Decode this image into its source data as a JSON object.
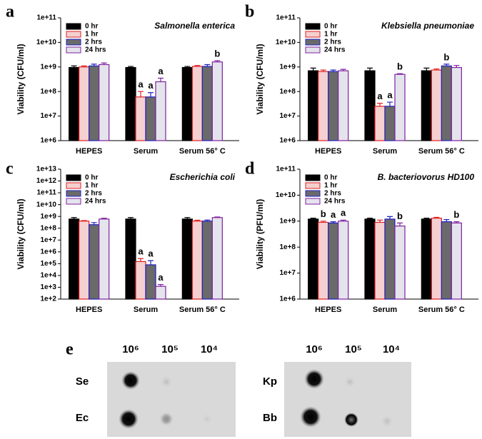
{
  "chart_data": [
    {
      "type": "bar",
      "panel_label": "a",
      "title": "Salmonella enterica",
      "ylabel": "Viability (CFU/ml)",
      "categories": [
        "HEPES",
        "Serum",
        "Serum 56° C"
      ],
      "log_scale": true,
      "legend": "upper left",
      "ylim": [
        1000000.0,
        100000000000.0
      ],
      "yticks": [
        {
          "value": 1000000.0,
          "label": "1e+6"
        },
        {
          "value": 10000000.0,
          "label": "1e+7"
        },
        {
          "value": 100000000.0,
          "label": "1e+8"
        },
        {
          "value": 1000000000.0,
          "label": "1e+9"
        },
        {
          "value": 10000000000.0,
          "label": "1e+10"
        },
        {
          "value": 100000000000.0,
          "label": "1e+11"
        }
      ],
      "series": [
        {
          "name": "0 hr",
          "color": "#000000",
          "edgecolor": "#000000",
          "values": [
            950000000,
            950000000,
            950000000
          ],
          "errors": [
            150000000,
            100000000,
            100000000
          ],
          "annotations": [
            null,
            null,
            null
          ]
        },
        {
          "name": "1 hr",
          "color": "#f4d0d0",
          "edgecolor": "#e02020",
          "values": [
            1000000000,
            60000000,
            1050000000
          ],
          "errors": [
            100000000,
            40000000,
            100000000
          ],
          "annotations": [
            null,
            "a",
            null
          ]
        },
        {
          "name": "2 hrs",
          "color": "#6a6a6a",
          "edgecolor": "#2020c0",
          "values": [
            1100000000,
            60000000,
            1050000000
          ],
          "errors": [
            200000000,
            30000000,
            200000000
          ],
          "annotations": [
            null,
            "a",
            null
          ]
        },
        {
          "name": "24 hrs",
          "color": "#e4e4ec",
          "edgecolor": "#8020a0",
          "values": [
            1250000000,
            250000000,
            1600000000
          ],
          "errors": [
            200000000,
            100000000,
            200000000
          ],
          "annotations": [
            null,
            "a",
            "b"
          ]
        }
      ]
    },
    {
      "type": "bar",
      "panel_label": "b",
      "title": "Klebsiella pneumoniae",
      "ylabel": "Viability (CFU/ml)",
      "categories": [
        "HEPES",
        "Serum",
        "Serum 56° C"
      ],
      "log_scale": true,
      "legend": "upper left",
      "ylim": [
        1000000.0,
        100000000000.0
      ],
      "yticks": [
        {
          "value": 1000000.0,
          "label": "1e+6"
        },
        {
          "value": 10000000.0,
          "label": "1e+7"
        },
        {
          "value": 100000000.0,
          "label": "1e+8"
        },
        {
          "value": 1000000000.0,
          "label": "1e+9"
        },
        {
          "value": 10000000000.0,
          "label": "1e+10"
        },
        {
          "value": 100000000000.0,
          "label": "1e+11"
        }
      ],
      "series": [
        {
          "name": "0 hr",
          "color": "#000000",
          "edgecolor": "#000000",
          "values": [
            700000000,
            700000000,
            700000000
          ],
          "errors": [
            200000000,
            200000000,
            200000000
          ],
          "annotations": [
            null,
            null,
            null
          ]
        },
        {
          "name": "1 hr",
          "color": "#f4d0d0",
          "edgecolor": "#e02020",
          "values": [
            650000000,
            25000000,
            750000000
          ],
          "errors": [
            100000000,
            8000000,
            80000000
          ],
          "annotations": [
            null,
            "a",
            null
          ]
        },
        {
          "name": "2 hrs",
          "color": "#6a6a6a",
          "edgecolor": "#2020c0",
          "values": [
            650000000,
            25000000,
            1100000000
          ],
          "errors": [
            100000000,
            12000000,
            200000000
          ],
          "annotations": [
            null,
            "a",
            "b"
          ]
        },
        {
          "name": "24 hrs",
          "color": "#e4e4ec",
          "edgecolor": "#8020a0",
          "values": [
            700000000,
            500000000,
            950000000
          ],
          "errors": [
            100000000,
            30000000,
            200000000
          ],
          "annotations": [
            null,
            "b",
            null
          ]
        }
      ]
    },
    {
      "type": "bar",
      "panel_label": "c",
      "title": "Escherichia coli",
      "ylabel": "Viability (CFU/ml)",
      "categories": [
        "HEPES",
        "Serum",
        "Serum 56° C"
      ],
      "log_scale": true,
      "legend": "upper left",
      "ylim": [
        100,
        10000000000000.0
      ],
      "yticks": [
        {
          "value": 100,
          "label": "1e+2"
        },
        {
          "value": 1000,
          "label": "1e+3"
        },
        {
          "value": 10000,
          "label": "1e+4"
        },
        {
          "value": 100000,
          "label": "1e+5"
        },
        {
          "value": 1000000.0,
          "label": "1e+6"
        },
        {
          "value": 10000000.0,
          "label": "1e+7"
        },
        {
          "value": 100000000.0,
          "label": "1e+8"
        },
        {
          "value": 1000000000.0,
          "label": "1e+9"
        },
        {
          "value": 10000000000.0,
          "label": "1e+10"
        },
        {
          "value": 100000000000.0,
          "label": "1e+11"
        },
        {
          "value": 1000000000000.0,
          "label": "1e+12"
        },
        {
          "value": 10000000000000.0,
          "label": "1e+13"
        }
      ],
      "series": [
        {
          "name": "0 hr",
          "color": "#000000",
          "edgecolor": "#000000",
          "values": [
            600000000,
            600000000,
            600000000
          ],
          "errors": [
            200000000,
            200000000,
            200000000
          ],
          "annotations": [
            null,
            null,
            null
          ]
        },
        {
          "name": "1 hr",
          "color": "#f4d0d0",
          "edgecolor": "#e02020",
          "values": [
            400000000,
            150000,
            400000000
          ],
          "errors": [
            50000000,
            120000,
            80000000
          ],
          "annotations": [
            null,
            "a",
            null
          ]
        },
        {
          "name": "2 hrs",
          "color": "#6a6a6a",
          "edgecolor": "#2020c0",
          "values": [
            200000000,
            80000,
            400000000
          ],
          "errors": [
            100000000,
            100000,
            100000000
          ],
          "annotations": [
            null,
            "a",
            null
          ]
        },
        {
          "name": "24 hrs",
          "color": "#e4e4ec",
          "edgecolor": "#8020a0",
          "values": [
            600000000,
            1200,
            800000000
          ],
          "errors": [
            100000000,
            500,
            100000000
          ],
          "annotations": [
            null,
            "a",
            null
          ]
        }
      ]
    },
    {
      "type": "bar",
      "panel_label": "d",
      "title": "B. bacteriovorus HD100",
      "ylabel": "Viability (PFU/ml)",
      "categories": [
        "HEPES",
        "Serum",
        "Serum 56° C"
      ],
      "log_scale": true,
      "legend": "upper left",
      "ylim": [
        1000000.0,
        100000000000.0
      ],
      "yticks": [
        {
          "value": 1000000.0,
          "label": "1e+6"
        },
        {
          "value": 10000000.0,
          "label": "1e+7"
        },
        {
          "value": 100000000.0,
          "label": "1e+8"
        },
        {
          "value": 1000000000.0,
          "label": "1e+9"
        },
        {
          "value": 10000000000.0,
          "label": "1e+10"
        },
        {
          "value": 100000000000.0,
          "label": "1e+11"
        }
      ],
      "series": [
        {
          "name": "0 hr",
          "color": "#000000",
          "edgecolor": "#000000",
          "values": [
            1200000000,
            1200000000,
            1200000000
          ],
          "errors": [
            100000000,
            100000000,
            100000000
          ],
          "annotations": [
            null,
            null,
            null
          ]
        },
        {
          "name": "1 hr",
          "color": "#f4d0d0",
          "edgecolor": "#e02020",
          "values": [
            900000000,
            900000000,
            1300000000
          ],
          "errors": [
            100000000,
            200000000,
            100000000
          ],
          "annotations": [
            "b",
            null,
            null
          ]
        },
        {
          "name": "2 hrs",
          "color": "#6a6a6a",
          "edgecolor": "#2020c0",
          "values": [
            850000000,
            1200000000,
            950000000
          ],
          "errors": [
            100000000,
            300000000,
            200000000
          ],
          "annotations": [
            "a",
            null,
            null
          ]
        },
        {
          "name": "24 hrs",
          "color": "#e4e4ec",
          "edgecolor": "#8020a0",
          "values": [
            1000000000,
            650000000,
            850000000
          ],
          "errors": [
            100000000,
            200000000,
            100000000
          ],
          "annotations": [
            "a",
            "b",
            "b"
          ]
        }
      ]
    }
  ],
  "blot": {
    "panel_label": "e",
    "groups": [
      {
        "columns": [
          "10⁶",
          "10⁵",
          "10⁴"
        ],
        "rows": [
          "Se",
          "Ec"
        ]
      },
      {
        "columns": [
          "10⁶",
          "10⁵",
          "10⁴"
        ],
        "rows": [
          "Kp",
          "Bb"
        ]
      }
    ]
  }
}
